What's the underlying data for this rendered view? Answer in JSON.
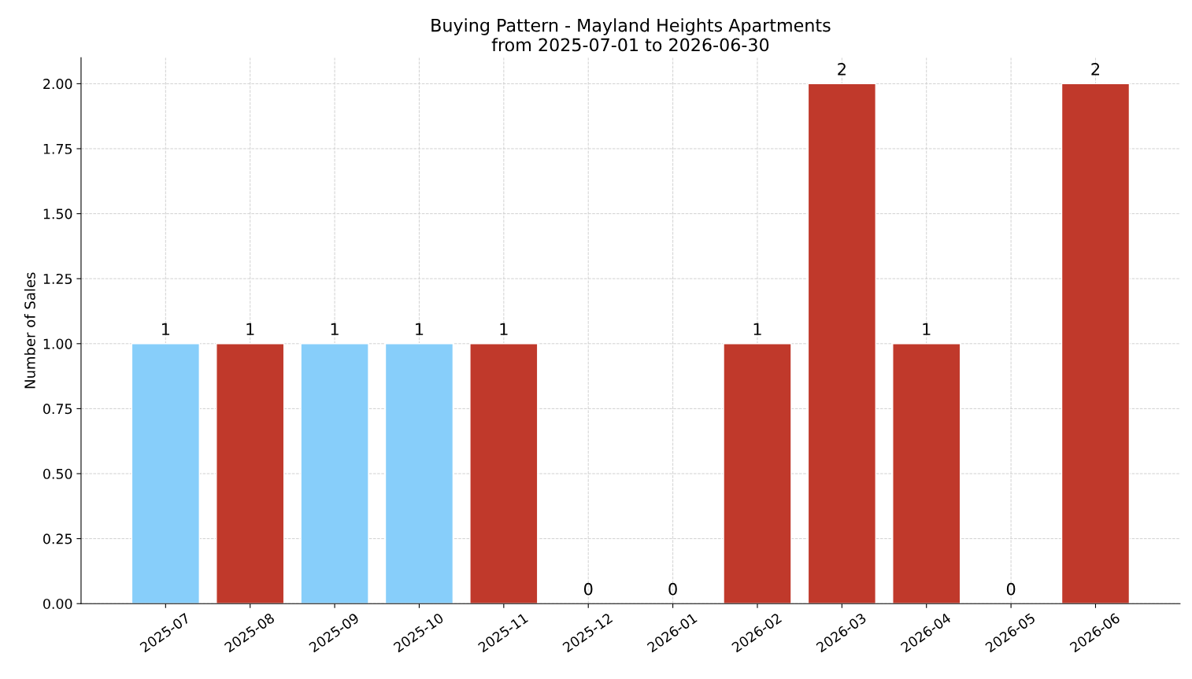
{
  "chart_data": {
    "type": "bar",
    "title": "Buying Pattern - Mayland Heights Apartments\nfrom 2025-07-01 to 2026-06-30",
    "ylabel": "Number of Sales",
    "categories": [
      "2025-07",
      "2025-08",
      "2025-09",
      "2025-10",
      "2025-11",
      "2025-12",
      "2026-01",
      "2026-02",
      "2026-03",
      "2026-04",
      "2026-05",
      "2026-06"
    ],
    "values": [
      1,
      1,
      1,
      1,
      1,
      0,
      0,
      1,
      2,
      1,
      0,
      2
    ],
    "colors": [
      "#87cefa",
      "#c0392b",
      "#87cefa",
      "#87cefa",
      "#c0392b",
      null,
      null,
      "#c0392b",
      "#c0392b",
      "#c0392b",
      null,
      "#c0392b"
    ],
    "ylim": [
      0,
      2.1
    ],
    "yticks": [
      {
        "value": 0,
        "label": "0.00"
      },
      {
        "value": 0.25,
        "label": "0.25"
      },
      {
        "value": 0.5,
        "label": "0.50"
      },
      {
        "value": 0.75,
        "label": "0.75"
      },
      {
        "value": 1,
        "label": "1.00"
      },
      {
        "value": 1.25,
        "label": "1.25"
      },
      {
        "value": 1.5,
        "label": "1.50"
      },
      {
        "value": 1.75,
        "label": "1.75"
      },
      {
        "value": 2,
        "label": "2.00"
      }
    ],
    "grid": true,
    "data_labels": true,
    "legend": false
  }
}
